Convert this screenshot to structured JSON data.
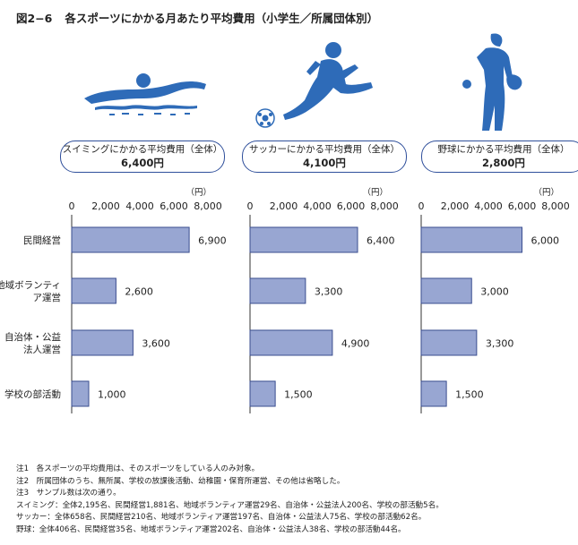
{
  "title": {
    "fig_no": "図2−6",
    "text": "各スポーツにかかる月あたり平均費用（小学生／所属団体別）"
  },
  "summaries": [
    {
      "label": "スイミングにかかる平均費用（全体）",
      "value": "6,400円",
      "icon": "swimmer-icon"
    },
    {
      "label": "サッカーにかかる平均費用（全体）",
      "value": "4,100円",
      "icon": "soccer-player-icon"
    },
    {
      "label": "野球にかかる平均費用（全体）",
      "value": "2,800円",
      "icon": "baseball-player-icon"
    }
  ],
  "unit_label": "（円）",
  "colors": {
    "bar": "#98a6d2",
    "bar_stroke": "#3a4d8f",
    "accent": "#2f4f9b",
    "silhouette": "#2e6bb8"
  },
  "chart_data": [
    {
      "type": "bar",
      "orientation": "horizontal",
      "sport": "スイミング",
      "categories": [
        "民間経営",
        "地域ボランティア運営",
        "自治体・公益法人運営",
        "学校の部活動"
      ],
      "category_lines": [
        [
          "民間経営"
        ],
        [
          "地域ボランティ",
          "ア運営"
        ],
        [
          "自治体・公益",
          "法人運営"
        ],
        [
          "学校の部活動"
        ]
      ],
      "values": [
        6900,
        2600,
        3600,
        1000
      ],
      "value_labels": [
        "6,900",
        "2,600",
        "3,600",
        "1,000"
      ],
      "xlim": [
        0,
        8000
      ],
      "ticks": [
        0,
        2000,
        4000,
        6000,
        8000
      ],
      "tick_labels": [
        "0",
        "2,000",
        "4,000",
        "6,000",
        "8,000"
      ],
      "unit": "（円）"
    },
    {
      "type": "bar",
      "orientation": "horizontal",
      "sport": "サッカー",
      "categories": [
        "民間経営",
        "地域ボランティア運営",
        "自治体・公益法人運営",
        "学校の部活動"
      ],
      "values": [
        6400,
        3300,
        4900,
        1500
      ],
      "value_labels": [
        "6,400",
        "3,300",
        "4,900",
        "1,500"
      ],
      "xlim": [
        0,
        8000
      ],
      "ticks": [
        0,
        2000,
        4000,
        6000,
        8000
      ],
      "tick_labels": [
        "0",
        "2,000",
        "4,000",
        "6,000",
        "8,000"
      ],
      "unit": "（円）"
    },
    {
      "type": "bar",
      "orientation": "horizontal",
      "sport": "野球",
      "categories": [
        "民間経営",
        "地域ボランティア運営",
        "自治体・公益法人運営",
        "学校の部活動"
      ],
      "values": [
        6000,
        3000,
        3300,
        1500
      ],
      "value_labels": [
        "6,000",
        "3,000",
        "3,300",
        "1,500"
      ],
      "xlim": [
        0,
        8000
      ],
      "ticks": [
        0,
        2000,
        4000,
        6000,
        8000
      ],
      "tick_labels": [
        "0",
        "2,000",
        "4,000",
        "6,000",
        "8,000"
      ],
      "unit": "（円）"
    }
  ],
  "notes": [
    "注1　各スポーツの平均費用は、そのスポーツをしている人のみ対象。",
    "注2　所属団体のうち、無所属、学校の放課後活動、幼稚園・保育所運営、その他は省略した。",
    "注3　サンプル数は次の通り。",
    "スイミング：全体2,195名、民間経営1,881名、地域ボランティア運営29名、自治体・公益法人200名、学校の部活動5名。",
    "サッカー：全体658名、民間経営210名、地域ボランティア運営197名、自治体・公益法人75名、学校の部活動62名。",
    "野球：全体406名、民間経営35名、地域ボランティア運営202名、自治体・公益法人38名、学校の部活動44名。"
  ]
}
